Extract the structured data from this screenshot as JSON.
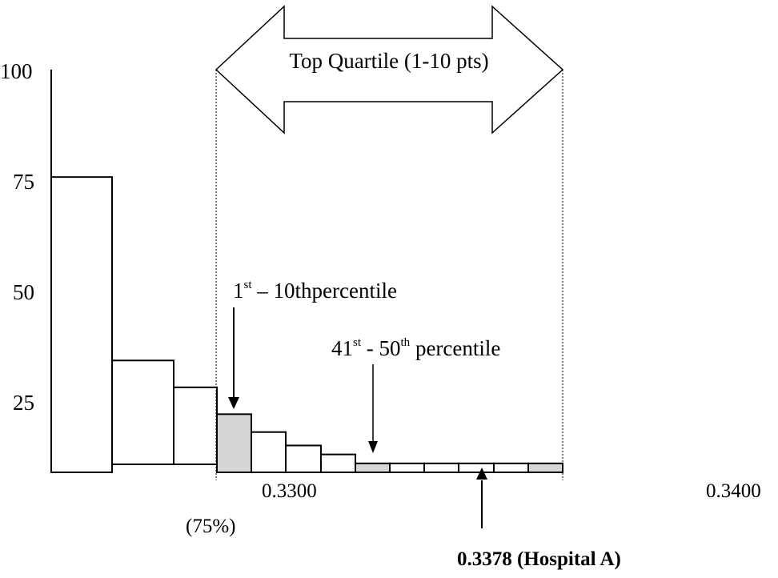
{
  "chart_data": {
    "type": "bar",
    "y_ticks": [
      "100",
      "75",
      "50",
      "25"
    ],
    "x_ticks": [
      "0.3300",
      "0.3400"
    ],
    "x_subnote": "(75%)",
    "values": [
      66,
      25,
      19,
      13,
      9,
      6,
      4,
      2,
      2,
      2,
      2,
      2,
      2
    ],
    "baselines": [
      10,
      10,
      10,
      10,
      10,
      10,
      10,
      10,
      10,
      10,
      10,
      10,
      10
    ],
    "shaded": [
      false,
      false,
      false,
      true,
      false,
      false,
      false,
      true,
      false,
      false,
      false,
      false,
      true
    ],
    "ylim": [
      10,
      100
    ],
    "colors": {
      "shaded": "#d6d6d6",
      "plain": "#ffffff",
      "stroke": "#000000"
    },
    "annotations": {
      "top_quartile": "Top Quartile (1-10 pts)",
      "first_pct": {
        "a": "1",
        "sup": "st",
        "b": " – 10thpercentile"
      },
      "pct_41_50": {
        "a": "41",
        "sup1": "st",
        "b": " - 50",
        "sup2": "th",
        "c": " percentile"
      },
      "hospital": "0.3378 (Hospital A)"
    }
  }
}
